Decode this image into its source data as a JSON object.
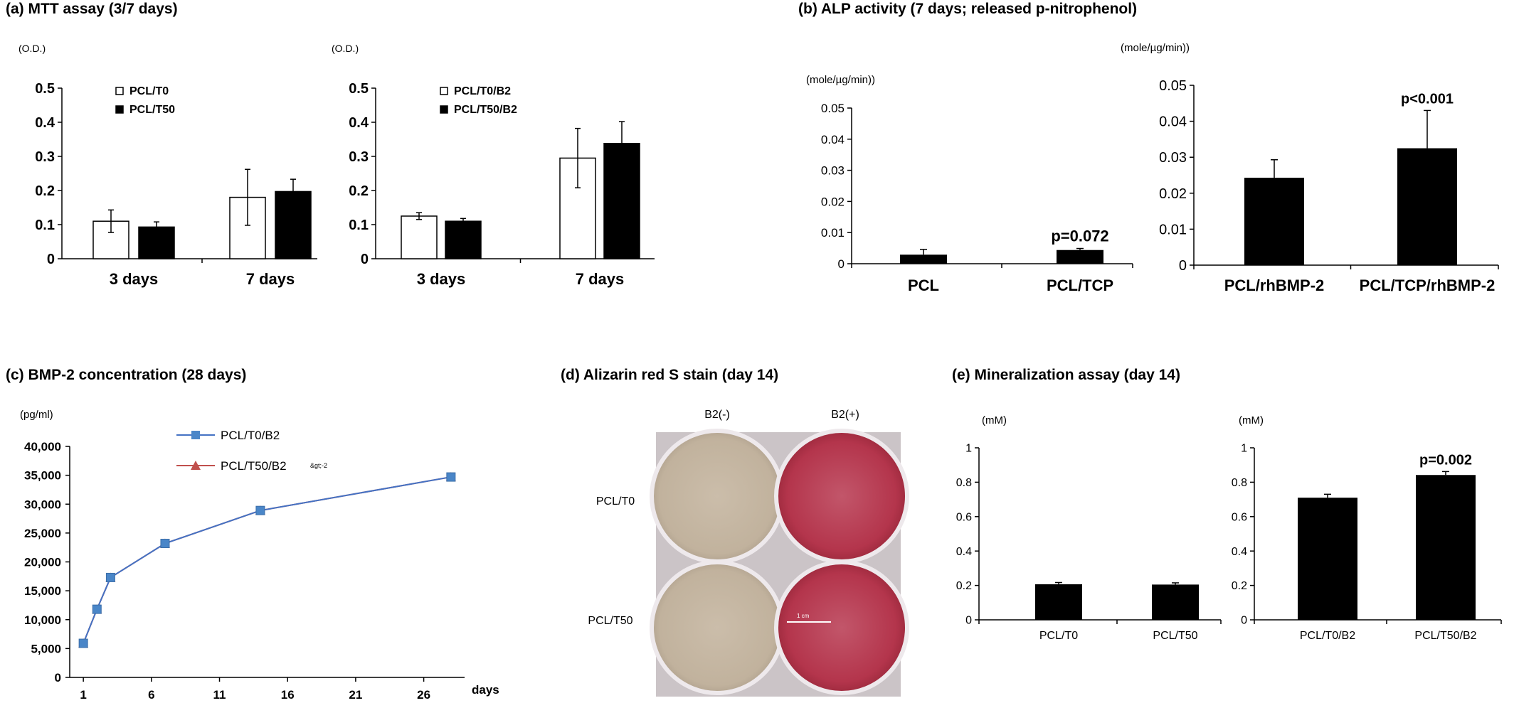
{
  "panels": {
    "a": {
      "title": "(a) MTT assay (3/7 days)"
    },
    "b": {
      "title": "(b) ALP activity (7 days; released p-nitrophenol)"
    },
    "c": {
      "title": "(c) BMP-2 concentration (28 days)"
    },
    "d": {
      "title": "(d) Alizarin red S stain (day 14)",
      "col_labels": [
        "B2(-)",
        "B2(+)"
      ],
      "row_labels": [
        "PCL/T0",
        "PCL/T50"
      ],
      "scale_label": "1 cm"
    },
    "e": {
      "title": "(e) Mineralization assay (day 14)"
    }
  },
  "colors": {
    "bar_black": "#000000",
    "bar_white": "#ffffff",
    "line_blue": "#4472c4",
    "line_red": "#c0504d",
    "marker_blue": "#4a86c8",
    "dish_red": "#b8324a",
    "dish_beige": "#c7b8a4",
    "plate_bg": "#c9c2c6"
  },
  "chart_data": [
    {
      "id": "a1",
      "type": "bar",
      "unit": "(O.D.)",
      "categories": [
        "3 days",
        "7 days"
      ],
      "series": [
        {
          "name": "PCL/T0",
          "fill": "white",
          "values": [
            0.11,
            0.18
          ],
          "errors": [
            0.033,
            0.082
          ]
        },
        {
          "name": "PCL/T50",
          "fill": "black",
          "values": [
            0.093,
            0.197
          ],
          "errors": [
            0.015,
            0.036
          ]
        }
      ],
      "ylim": [
        0,
        0.5
      ],
      "yticks": [
        "0",
        "0.1",
        "0.2",
        "0.3",
        "0.4",
        "0.5"
      ],
      "legend": "top-left"
    },
    {
      "id": "a2",
      "type": "bar",
      "unit": "(O.D.)",
      "categories": [
        "3 days",
        "7 days"
      ],
      "series": [
        {
          "name": "PCL/T0/B2",
          "fill": "white",
          "values": [
            0.125,
            0.295
          ],
          "errors": [
            0.01,
            0.087
          ]
        },
        {
          "name": "PCL/T50/B2",
          "fill": "black",
          "values": [
            0.11,
            0.338
          ],
          "errors": [
            0.008,
            0.064
          ]
        }
      ],
      "ylim": [
        0,
        0.5
      ],
      "yticks": [
        "0",
        "0.1",
        "0.2",
        "0.3",
        "0.4",
        "0.5"
      ],
      "legend": "top-left"
    },
    {
      "id": "b1",
      "type": "bar",
      "unit": "(mole/µg/min))",
      "categories": [
        "PCL",
        "PCL/TCP"
      ],
      "values": [
        0.0029,
        0.0044
      ],
      "errors": [
        0.0017,
        0.0005
      ],
      "annotations": [
        "",
        "p=0.072"
      ],
      "ylim": [
        0,
        0.05
      ],
      "yticks": [
        "0",
        "0.01",
        "0.02",
        "0.03",
        "0.04",
        "0.05"
      ]
    },
    {
      "id": "b2",
      "type": "bar",
      "unit": "(mole/µg/min))",
      "categories": [
        "PCL/rhBMP-2",
        "PCL/TCP/rhBMP-2"
      ],
      "values": [
        0.0243,
        0.0325
      ],
      "errors": [
        0.005,
        0.0105
      ],
      "annotations": [
        "",
        "p<0.001"
      ],
      "ylim": [
        0,
        0.05
      ],
      "yticks": [
        "0",
        "0.01",
        "0.02",
        "0.03",
        "0.04",
        "0.05"
      ]
    },
    {
      "id": "c",
      "type": "line",
      "unit": "(pg/ml)",
      "xlabel": "days",
      "series": [
        {
          "name": "PCL/T0/B2",
          "marker": "square",
          "x": [
            1,
            2,
            3,
            7,
            14,
            28
          ],
          "y": [
            5900,
            11800,
            17300,
            23200,
            28900,
            34700
          ]
        },
        {
          "name": "PCL/T50/B2",
          "marker": "triangle",
          "x": [
            1,
            2,
            3,
            7,
            14,
            28
          ],
          "y": [
            5900,
            11800,
            17300,
            23200,
            28900,
            34700
          ]
        }
      ],
      "stray_text": "&gt;-2",
      "xlim": [
        0,
        29
      ],
      "xticks": [
        "1",
        "6",
        "11",
        "16",
        "21",
        "26"
      ],
      "ylim": [
        0,
        40000
      ],
      "yticks": [
        "0",
        "5,000",
        "10,000",
        "15,000",
        "20,000",
        "25,000",
        "30,000",
        "35,000",
        "40,000"
      ],
      "legend": "top-center"
    },
    {
      "id": "e1",
      "type": "bar",
      "unit": "(mM)",
      "categories": [
        "PCL/T0",
        "PCL/T50"
      ],
      "values": [
        0.207,
        0.205
      ],
      "errors": [
        0.01,
        0.01
      ],
      "ylim": [
        0,
        1
      ],
      "yticks": [
        "0",
        "0.2",
        "0.4",
        "0.6",
        "0.8",
        "1"
      ]
    },
    {
      "id": "e2",
      "type": "bar",
      "unit": "(mM)",
      "categories": [
        "PCL/T0/B2",
        "PCL/T50/B2"
      ],
      "values": [
        0.71,
        0.842
      ],
      "errors": [
        0.02,
        0.02
      ],
      "annotations": [
        "",
        "p=0.002"
      ],
      "ylim": [
        0,
        1
      ],
      "yticks": [
        "0",
        "0.2",
        "0.4",
        "0.6",
        "0.8",
        "1"
      ]
    }
  ]
}
